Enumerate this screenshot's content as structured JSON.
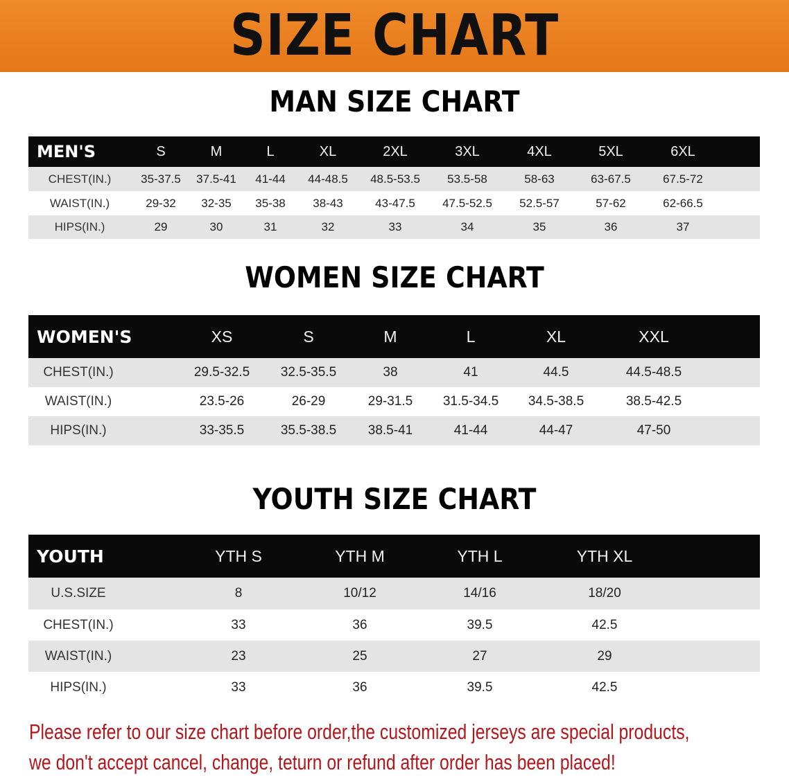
{
  "banner": {
    "title": "SIZE CHART",
    "background_color": "#e97c1f"
  },
  "men": {
    "title": "MAN SIZE CHART",
    "header": [
      "MEN'S",
      "S",
      "M",
      "L",
      "XL",
      "2XL",
      "3XL",
      "4XL",
      "5XL",
      "6XL"
    ],
    "rows": [
      [
        "CHEST(IN.)",
        "35-37.5",
        "37.5-41",
        "41-44",
        "44-48.5",
        "48.5-53.5",
        "53.5-58",
        "58-63",
        "63-67.5",
        "67.5-72"
      ],
      [
        "WAIST(IN.)",
        "29-32",
        "32-35",
        "35-38",
        "38-43",
        "43-47.5",
        "47.5-52.5",
        "52.5-57",
        "57-62",
        "62-66.5"
      ],
      [
        "HIPS(IN.)",
        "29",
        "30",
        "31",
        "32",
        "33",
        "34",
        "35",
        "36",
        "37"
      ]
    ]
  },
  "women": {
    "title": "WOMEN SIZE CHART",
    "header": [
      "WOMEN'S",
      "XS",
      "S",
      "M",
      "L",
      "XL",
      "XXL"
    ],
    "rows": [
      [
        "CHEST(IN.)",
        "29.5-32.5",
        "32.5-35.5",
        "38",
        "41",
        "44.5",
        "44.5-48.5"
      ],
      [
        "WAIST(IN.)",
        "23.5-26",
        "26-29",
        "29-31.5",
        "31.5-34.5",
        "34.5-38.5",
        "38.5-42.5"
      ],
      [
        "HIPS(IN.)",
        "33-35.5",
        "35.5-38.5",
        "38.5-41",
        "41-44",
        "44-47",
        "47-50"
      ]
    ]
  },
  "youth": {
    "title": "YOUTH SIZE CHART",
    "header": [
      "YOUTH",
      "YTH S",
      "YTH M",
      "YTH L",
      "YTH XL"
    ],
    "rows": [
      [
        "U.S.SIZE",
        "8",
        "10/12",
        "14/16",
        "18/20"
      ],
      [
        "CHEST(IN.)",
        "33",
        "36",
        "39.5",
        "42.5"
      ],
      [
        "WAIST(IN.)",
        "23",
        "25",
        "27",
        "29"
      ],
      [
        "HIPS(IN.)",
        "33",
        "36",
        "39.5",
        "42.5"
      ]
    ]
  },
  "notice": {
    "line1": "Please refer to our size chart before order,the customized jerseys are special products,",
    "line2": "we don't accept cancel, change, teturn or refund after order has been placed!",
    "color": "#b3161b"
  }
}
